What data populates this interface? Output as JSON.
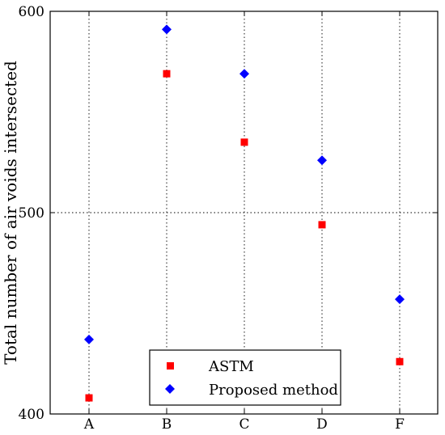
{
  "chart_data": {
    "type": "scatter",
    "categories": [
      "A",
      "B",
      "C",
      "D",
      "F"
    ],
    "ylabel": "Total number of air voids intersected",
    "xlabel": "",
    "title": "",
    "ylim": [
      400,
      600
    ],
    "yticks": [
      "400",
      "500",
      "600"
    ],
    "grid": true,
    "legend_position": "lower center",
    "series": [
      {
        "name": "ASTM",
        "marker": "square",
        "color": "#ff0000",
        "values": [
          408,
          569,
          535,
          494,
          426
        ]
      },
      {
        "name": "Proposed method",
        "marker": "diamond",
        "color": "#0000ff",
        "values": [
          437,
          591,
          569,
          526,
          457
        ]
      }
    ]
  }
}
